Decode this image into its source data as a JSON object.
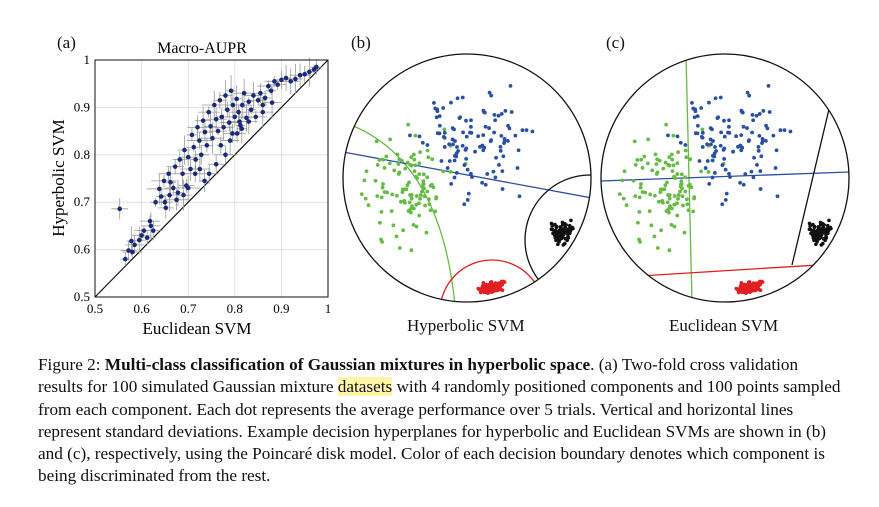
{
  "panels": {
    "a": {
      "letter": "(a)"
    },
    "b": {
      "letter": "(b)",
      "label": "Hyperbolic SVM"
    },
    "c": {
      "letter": "(c)",
      "label": "Euclidean SVM"
    }
  },
  "colors": {
    "green": "#66bb44",
    "blue": "#2a4fa6",
    "black": "#111111",
    "red": "#e02020",
    "scatter_dot": "#1a2a7a",
    "errorbar": "#9a9a9a"
  },
  "chart_data": {
    "type": "scatter",
    "title": "Macro-AUPR",
    "xlabel": "Euclidean SVM",
    "ylabel": "Hyperbolic SVM",
    "xlim": [
      0.5,
      1
    ],
    "ylim": [
      0.5,
      1
    ],
    "xticks": [
      "0.5",
      "0.6",
      "0.7",
      "0.8",
      "0.9",
      "1"
    ],
    "yticks": [
      "0.5",
      "0.6",
      "0.7",
      "0.8",
      "0.9",
      "1"
    ],
    "grid": true,
    "diagonal": true,
    "points": [
      [
        0.553,
        0.686
      ],
      [
        0.565,
        0.58
      ],
      [
        0.572,
        0.598
      ],
      [
        0.578,
        0.618
      ],
      [
        0.585,
        0.61
      ],
      [
        0.595,
        0.62
      ],
      [
        0.605,
        0.64
      ],
      [
        0.612,
        0.625
      ],
      [
        0.618,
        0.66
      ],
      [
        0.625,
        0.64
      ],
      [
        0.63,
        0.7
      ],
      [
        0.638,
        0.728
      ],
      [
        0.642,
        0.712
      ],
      [
        0.648,
        0.745
      ],
      [
        0.652,
        0.688
      ],
      [
        0.658,
        0.76
      ],
      [
        0.662,
        0.742
      ],
      [
        0.668,
        0.73
      ],
      [
        0.672,
        0.775
      ],
      [
        0.678,
        0.72
      ],
      [
        0.682,
        0.79
      ],
      [
        0.688,
        0.76
      ],
      [
        0.692,
        0.81
      ],
      [
        0.696,
        0.735
      ],
      [
        0.7,
        0.795
      ],
      [
        0.705,
        0.77
      ],
      [
        0.708,
        0.842
      ],
      [
        0.712,
        0.816
      ],
      [
        0.716,
        0.79
      ],
      [
        0.72,
        0.858
      ],
      [
        0.724,
        0.83
      ],
      [
        0.728,
        0.8
      ],
      [
        0.732,
        0.872
      ],
      [
        0.736,
        0.848
      ],
      [
        0.74,
        0.82
      ],
      [
        0.744,
        0.89
      ],
      [
        0.748,
        0.86
      ],
      [
        0.752,
        0.835
      ],
      [
        0.756,
        0.905
      ],
      [
        0.76,
        0.875
      ],
      [
        0.764,
        0.85
      ],
      [
        0.768,
        0.915
      ],
      [
        0.772,
        0.88
      ],
      [
        0.776,
        0.858
      ],
      [
        0.78,
        0.925
      ],
      [
        0.784,
        0.895
      ],
      [
        0.788,
        0.868
      ],
      [
        0.792,
        0.935
      ],
      [
        0.796,
        0.905
      ],
      [
        0.8,
        0.88
      ],
      [
        0.804,
        0.918
      ],
      [
        0.808,
        0.89
      ],
      [
        0.812,
        0.862
      ],
      [
        0.816,
        0.905
      ],
      [
        0.82,
        0.93
      ],
      [
        0.825,
        0.878
      ],
      [
        0.83,
        0.912
      ],
      [
        0.835,
        0.895
      ],
      [
        0.84,
        0.925
      ],
      [
        0.845,
        0.88
      ],
      [
        0.85,
        0.915
      ],
      [
        0.855,
        0.93
      ],
      [
        0.86,
        0.905
      ],
      [
        0.865,
        0.92
      ],
      [
        0.872,
        0.945
      ],
      [
        0.878,
        0.935
      ],
      [
        0.885,
        0.955
      ],
      [
        0.892,
        0.948
      ],
      [
        0.9,
        0.958
      ],
      [
        0.91,
        0.962
      ],
      [
        0.92,
        0.955
      ],
      [
        0.93,
        0.96
      ],
      [
        0.94,
        0.968
      ],
      [
        0.95,
        0.97
      ],
      [
        0.96,
        0.975
      ],
      [
        0.97,
        0.98
      ],
      [
        0.975,
        0.985
      ],
      [
        0.735,
        0.745
      ],
      [
        0.76,
        0.78
      ],
      [
        0.79,
        0.83
      ],
      [
        0.805,
        0.845
      ],
      [
        0.815,
        0.855
      ],
      [
        0.745,
        0.76
      ],
      [
        0.7,
        0.73
      ],
      [
        0.69,
        0.715
      ],
      [
        0.78,
        0.8
      ],
      [
        0.83,
        0.87
      ],
      [
        0.86,
        0.89
      ],
      [
        0.88,
        0.91
      ],
      [
        0.62,
        0.65
      ],
      [
        0.65,
        0.7
      ],
      [
        0.675,
        0.705
      ],
      [
        0.715,
        0.76
      ],
      [
        0.725,
        0.77
      ],
      [
        0.795,
        0.845
      ],
      [
        0.81,
        0.87
      ],
      [
        0.77,
        0.82
      ],
      [
        0.66,
        0.715
      ],
      [
        0.6,
        0.63
      ],
      [
        0.58,
        0.595
      ]
    ]
  },
  "caption": {
    "prefix": "Figure 2: ",
    "bold_title": "Multi-class classification of Gaussian mixtures in hyperbolic space",
    "text1": ". (a) Two-fold cross validation results for 100 simulated Gaussian mixture ",
    "highlight": "datasets",
    "text2": " with 4 randomly positioned components and 100 points sampled from each component. Each dot represents the average performance over 5 trials. Vertical and horizontal lines represent standard deviations. Example decision hyperplanes for hyperbolic and Euclidean SVMs are shown in (b) and (c), respectively, using the Poincaré disk model. Color of each decision boundary denotes which component is being discriminated from the rest."
  }
}
